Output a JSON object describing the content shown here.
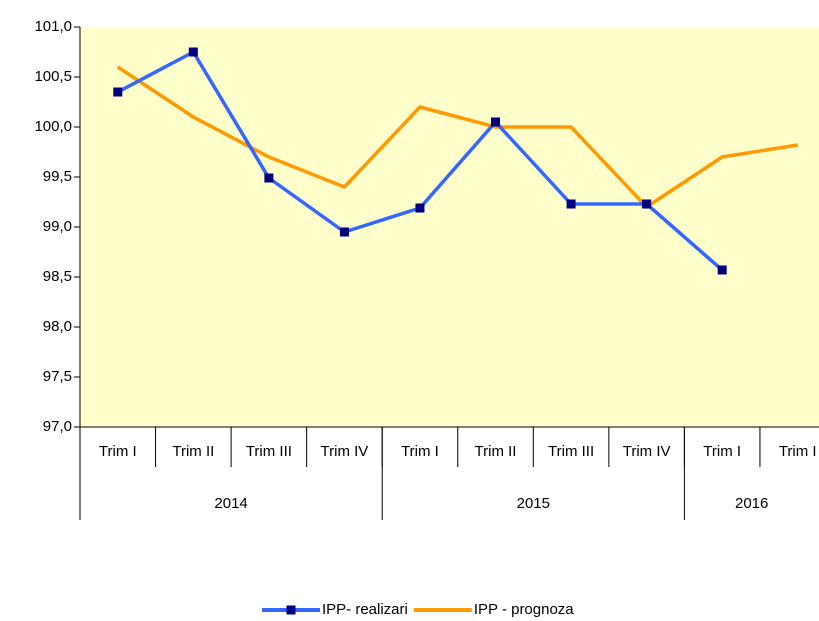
{
  "chart_data": {
    "type": "line",
    "categories": [
      "Trim I",
      "Trim II",
      "Trim III",
      "Trim IV",
      "Trim I",
      "Trim II",
      "Trim III",
      "Trim IV",
      "Trim I",
      "Trim I"
    ],
    "groups": [
      {
        "label": "2014",
        "span": 4
      },
      {
        "label": "2015",
        "span": 4
      },
      {
        "label": "2016",
        "span": 2
      }
    ],
    "series": [
      {
        "name": "IPP- realizari",
        "color": "#3366ff",
        "marker_color": "#000080",
        "values": [
          100.35,
          100.75,
          99.49,
          98.95,
          99.19,
          100.05,
          99.23,
          99.23,
          98.57,
          null
        ]
      },
      {
        "name": "IPP - prognoza",
        "color": "#ff9900",
        "values": [
          100.6,
          100.1,
          99.7,
          99.4,
          100.2,
          100.0,
          100.0,
          99.2,
          99.7,
          99.82
        ]
      }
    ],
    "ylim": [
      97,
      101
    ],
    "yticks": [
      {
        "value": 97,
        "label": "97,0"
      },
      {
        "value": 97.5,
        "label": "97,5"
      },
      {
        "value": 98,
        "label": "98,0"
      },
      {
        "value": 98.5,
        "label": "98,5"
      },
      {
        "value": 99,
        "label": "99,0"
      },
      {
        "value": 99.5,
        "label": "99,5"
      },
      {
        "value": 100,
        "label": "100,0"
      },
      {
        "value": 100.5,
        "label": "100,5"
      },
      {
        "value": 101,
        "label": "101,0"
      }
    ],
    "plot_background": "#ffffcc",
    "legend": "bottom"
  }
}
